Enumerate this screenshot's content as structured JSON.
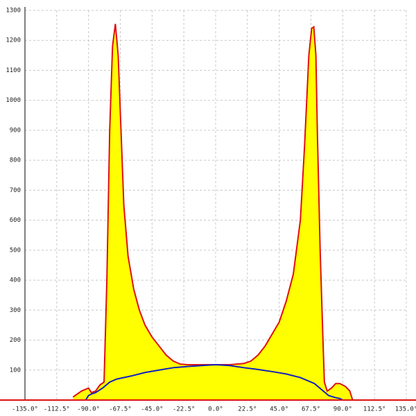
{
  "chart_data": {
    "type": "area",
    "xlim": [
      -135,
      135
    ],
    "ylim": [
      0,
      1300
    ],
    "xticks": [
      {
        "value": -135,
        "label": "-135.0°"
      },
      {
        "value": -112.5,
        "label": "-112.5°"
      },
      {
        "value": -90,
        "label": "-90.0°"
      },
      {
        "value": -67.5,
        "label": "-67.5°"
      },
      {
        "value": -45,
        "label": "-45.0°"
      },
      {
        "value": -22.5,
        "label": "-22.5°"
      },
      {
        "value": 0,
        "label": "0.0°"
      },
      {
        "value": 22.5,
        "label": "22.5°"
      },
      {
        "value": 45,
        "label": "45.0°"
      },
      {
        "value": 67.5,
        "label": "67.5°"
      },
      {
        "value": 90,
        "label": "90.0°"
      },
      {
        "value": 112.5,
        "label": "112.5°"
      },
      {
        "value": 135,
        "label": "135.0°"
      }
    ],
    "yticks": [
      100,
      200,
      300,
      400,
      500,
      600,
      700,
      800,
      900,
      1000,
      1100,
      1200,
      1300
    ],
    "grid": true,
    "series": [
      {
        "color": "#e01010",
        "fill": "#ffff00",
        "x": [
          -101,
          -95,
          -90,
          -88,
          -85,
          -82,
          -79,
          -77,
          -75,
          -73,
          -71,
          -69,
          -67,
          -65,
          -62,
          -58,
          -54,
          -50,
          -45,
          -40,
          -35,
          -30,
          -25,
          -20,
          -10,
          0,
          10,
          20,
          25,
          30,
          35,
          40,
          45,
          50,
          55,
          60,
          63,
          66,
          68,
          69.5,
          71,
          72,
          74,
          76,
          77,
          79,
          82,
          85,
          88,
          92,
          95,
          97
        ],
        "values": [
          10,
          30,
          40,
          25,
          30,
          50,
          60,
          400,
          900,
          1180,
          1255,
          1150,
          900,
          650,
          480,
          370,
          300,
          250,
          210,
          180,
          150,
          130,
          120,
          118,
          118,
          118,
          118,
          122,
          130,
          150,
          180,
          220,
          260,
          330,
          420,
          600,
          850,
          1150,
          1240,
          1245,
          1150,
          900,
          500,
          200,
          60,
          30,
          40,
          55,
          55,
          45,
          30,
          0
        ]
      },
      {
        "color": "#1020c0",
        "x": [
          -92,
          -90,
          -88,
          -85,
          -80,
          -75,
          -70,
          -60,
          -50,
          -40,
          -30,
          -20,
          -10,
          0,
          10,
          20,
          30,
          40,
          50,
          60,
          70,
          75,
          80,
          85,
          88,
          90
        ],
        "values": [
          0,
          15,
          20,
          25,
          40,
          60,
          70,
          80,
          92,
          100,
          108,
          112,
          115,
          118,
          115,
          108,
          102,
          95,
          87,
          75,
          55,
          35,
          15,
          8,
          5,
          0
        ]
      }
    ]
  }
}
